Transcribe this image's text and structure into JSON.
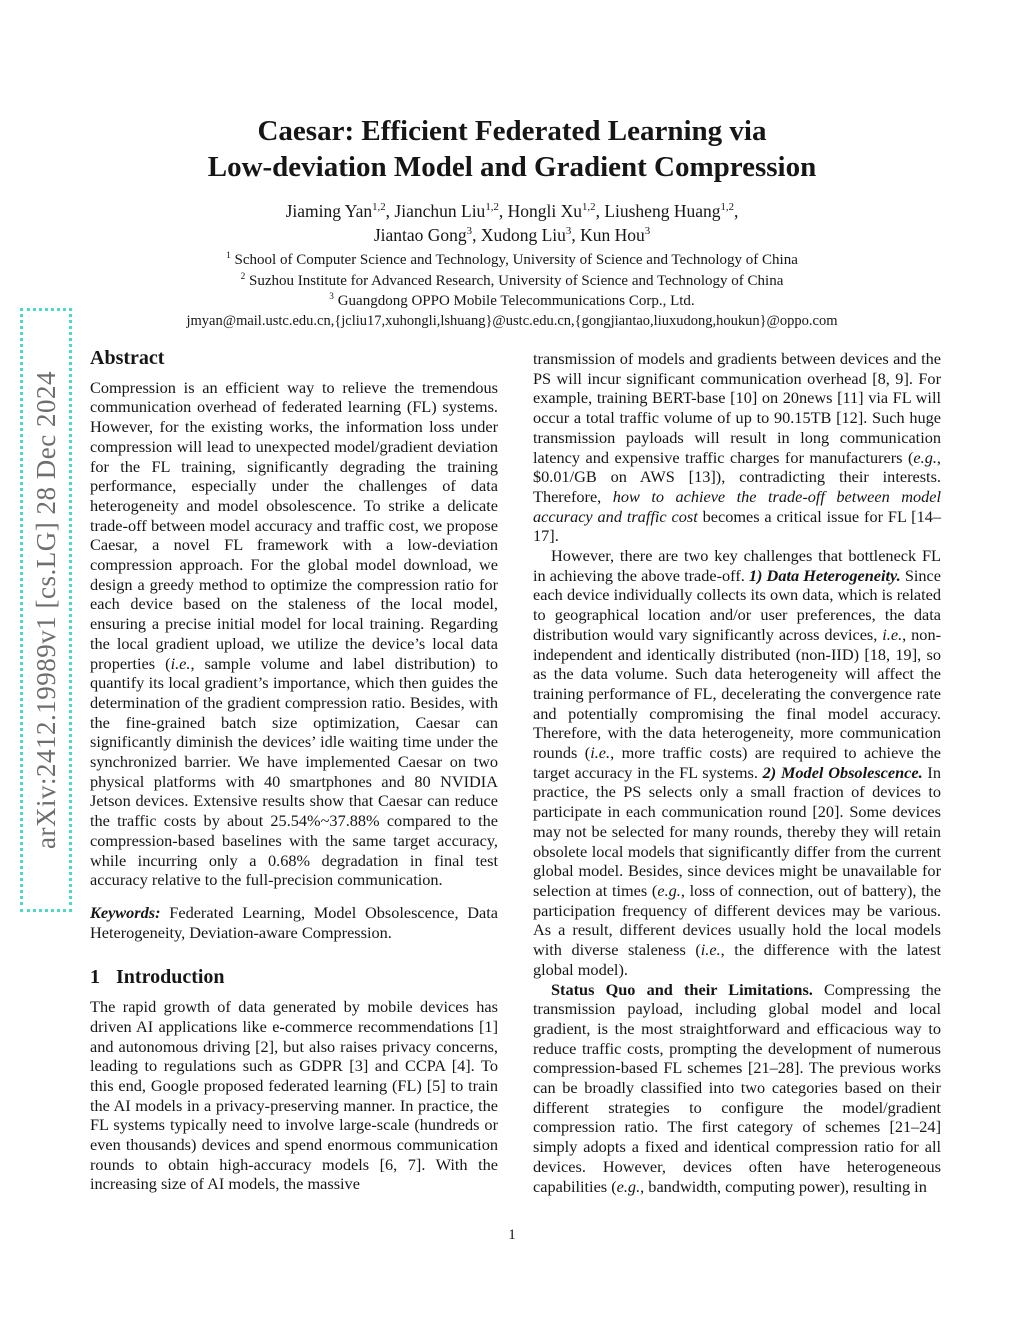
{
  "sidebar": {
    "arxiv_label": "arXiv:2412.19989v1  [cs.LG]  28 Dec 2024",
    "border_color": "#4ed9c6",
    "text_color": "#6e6e6e"
  },
  "header": {
    "title_line1": "Caesar: Efficient Federated Learning via",
    "title_line2": "Low-deviation Model and Gradient Compression",
    "authors_line1": [
      {
        "t": "Jiaming Yan"
      },
      {
        "t": "1,2",
        "s": "sup"
      },
      {
        "t": ", Jianchun Liu"
      },
      {
        "t": "1,2",
        "s": "sup"
      },
      {
        "t": ", Hongli Xu"
      },
      {
        "t": "1,2",
        "s": "sup"
      },
      {
        "t": ", Liusheng Huang"
      },
      {
        "t": "1,2",
        "s": "sup"
      },
      {
        "t": ","
      }
    ],
    "authors_line2": [
      {
        "t": "Jiantao Gong"
      },
      {
        "t": "3",
        "s": "sup"
      },
      {
        "t": ", Xudong Liu"
      },
      {
        "t": "3",
        "s": "sup"
      },
      {
        "t": ", Kun Hou"
      },
      {
        "t": "3",
        "s": "sup"
      }
    ],
    "affiliations": {
      "0": [
        {
          "t": "1",
          "s": "sup"
        },
        {
          "t": " School of Computer Science and Technology, University of Science and Technology of China"
        }
      ],
      "1": [
        {
          "t": "2",
          "s": "sup"
        },
        {
          "t": " Suzhou Institute for Advanced Research, University of Science and Technology of China"
        }
      ],
      "2": [
        {
          "t": "3",
          "s": "sup"
        },
        {
          "t": " Guangdong OPPO Mobile Telecommunications Corp., Ltd."
        }
      ]
    },
    "emails": "jmyan@mail.ustc.edu.cn,{jcliu17,xuhongli,lshuang}@ustc.edu.cn,{gongjiantao,liuxudong,houkun}@oppo.com"
  },
  "abstract": {
    "heading": "Abstract",
    "paragraph": [
      {
        "t": "Compression is an efficient way to relieve the tremendous communication overhead of federated learning (FL) systems. However, for the existing works, the information loss under compression will lead to unexpected model/gradient deviation for the FL training, significantly degrading the training performance, especially under the challenges of data heterogeneity and model obsolescence. To strike a delicate trade-off between model accuracy and traffic cost, we propose Caesar, a novel FL framework with a low-deviation compression approach. For the global model download, we design a greedy method to optimize the compression ratio for each device based on the staleness of the local model, ensuring a precise initial model for local training. Regarding the local gradient upload, we utilize the device’s local data properties ("
      },
      {
        "t": "i.e.",
        "s": "i"
      },
      {
        "t": ", sample volume and label distribution) to quantify its local gradient’s importance, which then guides the determination of the gradient compression ratio. Besides, with the fine-grained batch size optimization, Caesar can significantly diminish the devices’ idle waiting time under the synchronized barrier. We have implemented Caesar on two physical platforms with 40 smartphones and 80 NVIDIA Jetson devices. Extensive results show that Caesar can reduce the traffic costs by about 25.54%~37.88% compared to the compression-based baselines with the same target accuracy, while incurring only a 0.68% degradation in final test accuracy relative to the full-precision communication."
      }
    ],
    "keywords": [
      {
        "t": "Keywords: ",
        "s": "bi"
      },
      {
        "t": "Federated Learning, Model Obsolescence, Data Heterogeneity, Deviation-aware Compression."
      }
    ]
  },
  "introduction": {
    "number": "1",
    "title": "Introduction",
    "paragraph": [
      {
        "t": "The rapid growth of data generated by mobile devices has driven AI applications like e-commerce recommendations [1] and autonomous driving [2], but also raises privacy concerns, leading to regulations such as GDPR [3] and CCPA [4]. To this end, Google proposed federated learning (FL) [5] to train the AI models in a privacy-preserving manner. In practice, the FL systems typically need to involve large-scale (hundreds or even thousands) devices and spend enormous communication rounds to obtain high-accuracy models [6, 7]. With the increasing size of AI models, the massive"
      }
    ]
  },
  "right_column": {
    "paragraphs": {
      "0": {
        "segments": [
          {
            "t": "transmission of models and gradients between devices and the PS will incur significant communication overhead [8, 9]. For example, training BERT-base [10] on 20news [11] via FL will occur a total traffic volume of up to 90.15TB [12]. Such huge transmission payloads will result in long communication latency and expensive traffic charges for manufacturers ("
          },
          {
            "t": "e.g.",
            "s": "i"
          },
          {
            "t": ", $0.01/GB on AWS [13]), contradicting their interests. Therefore, "
          },
          {
            "t": "how to achieve the trade-off between model accuracy and traffic cost",
            "s": "i"
          },
          {
            "t": " becomes a critical issue for FL [14–17]."
          }
        ]
      },
      "1": {
        "segments": [
          {
            "t": "However, there are two key challenges that bottleneck FL in achieving the above trade-off. "
          },
          {
            "t": "1) Data Heterogeneity.",
            "s": "bi"
          },
          {
            "t": " Since each device individually collects its own data, which is related to geographical location and/or user preferences, the data distribution would vary significantly across devices, "
          },
          {
            "t": "i.e.",
            "s": "i"
          },
          {
            "t": ", non-independent and identically distributed (non-IID) [18, 19], so as the data volume. Such data heterogeneity will affect the training performance of FL, decelerating the convergence rate and potentially compromising the final model accuracy. Therefore, with the data heterogeneity, more communication rounds ("
          },
          {
            "t": "i.e.",
            "s": "i"
          },
          {
            "t": ", more traffic costs) are required to achieve the target accuracy in the FL systems. "
          },
          {
            "t": "2) Model Obsolescence.",
            "s": "bi"
          },
          {
            "t": " In practice, the PS selects only a small fraction of devices to participate in each communication round [20]. Some devices may not be selected for many rounds, thereby they will retain obsolete local models that significantly differ from the current global model. Besides, since devices might be unavailable for selection at times ("
          },
          {
            "t": "e.g.",
            "s": "i"
          },
          {
            "t": ", loss of connection, out of battery), the participation frequency of different devices may be various. As a result, different devices usually hold the local models with diverse staleness ("
          },
          {
            "t": "i.e.",
            "s": "i"
          },
          {
            "t": ", the difference with the latest global model)."
          }
        ]
      },
      "2": {
        "segments": [
          {
            "t": "Status Quo and their Limitations.",
            "s": "b"
          },
          {
            "t": " Compressing the transmission payload, including global model and local gradient, is the most straightforward and efficacious way to reduce traffic costs, prompting the development of numerous compression-based FL schemes [21–28]. The previous works can be broadly classified into two categories based on their different strategies to configure the model/gradient compression ratio. The first category of schemes [21–24] simply adopts a fixed and identical compression ratio for all devices. However, devices often have heterogeneous capabilities ("
          },
          {
            "t": "e.g.",
            "s": "i"
          },
          {
            "t": ", bandwidth, computing power), resulting in"
          }
        ]
      }
    }
  },
  "footer": {
    "page_number": "1"
  }
}
